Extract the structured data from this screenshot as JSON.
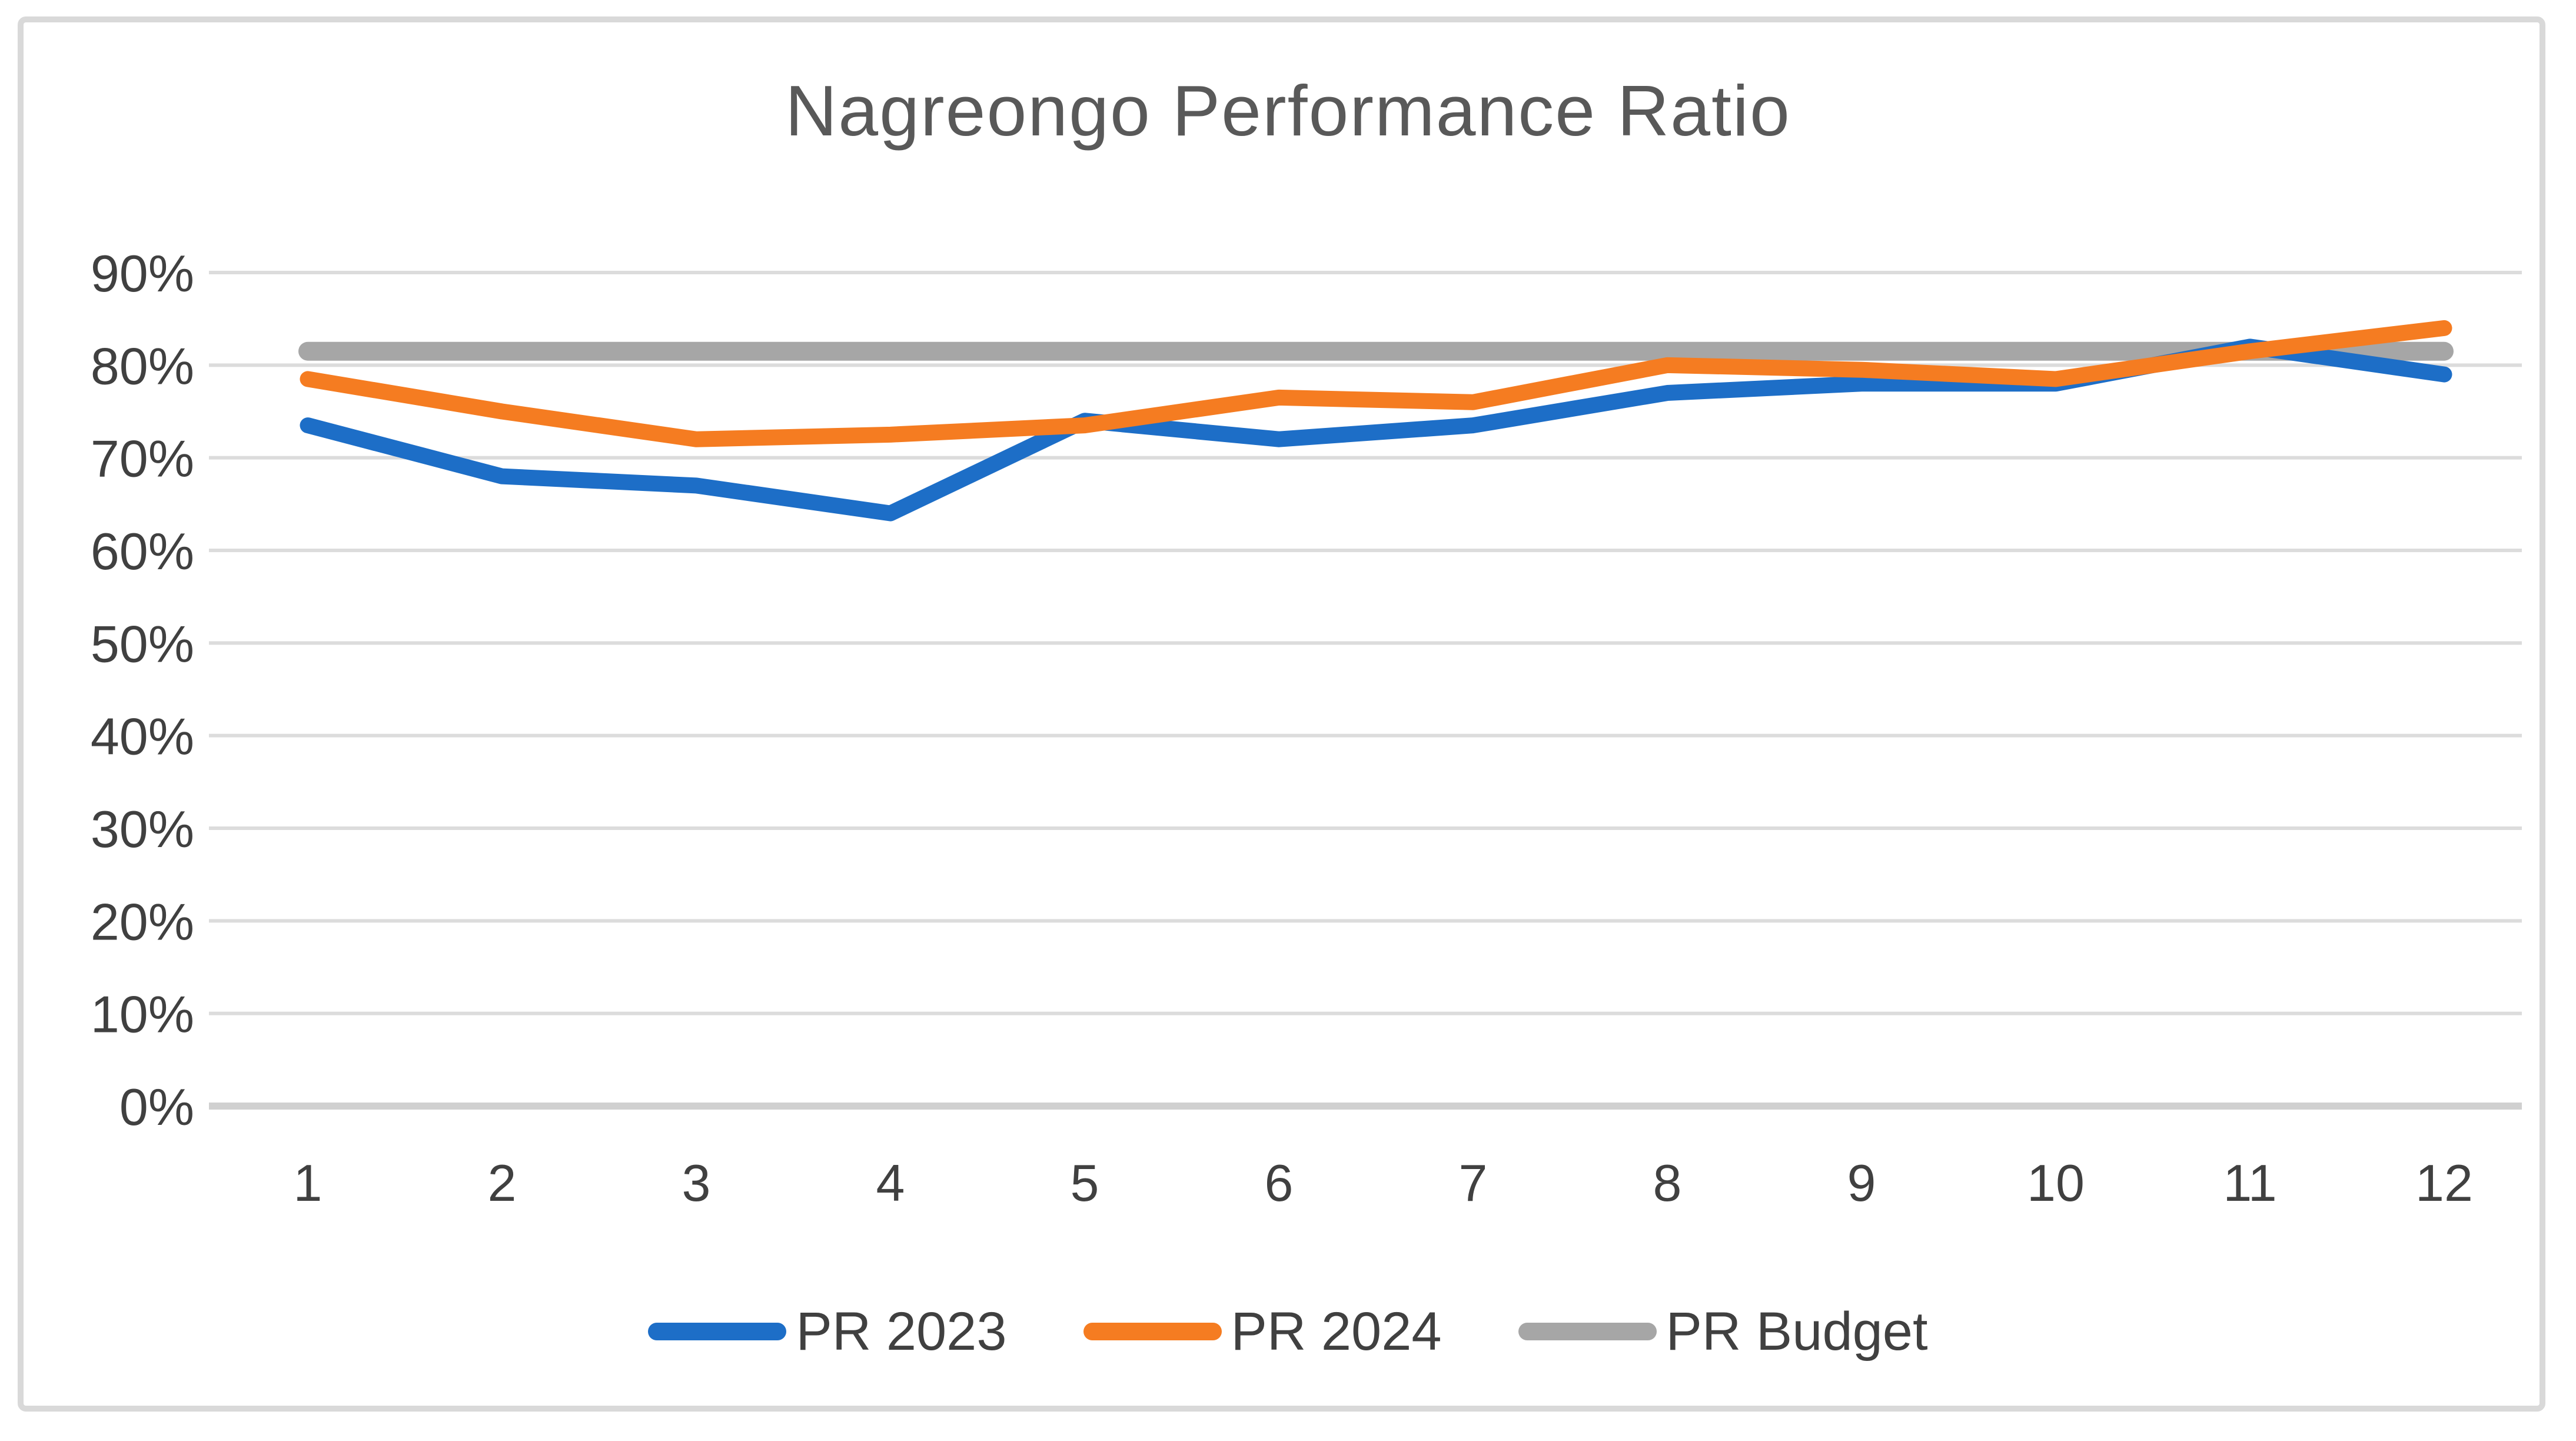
{
  "chart_data": {
    "type": "line",
    "title": "Nagreongo Performance Ratio",
    "categories": [
      "1",
      "2",
      "3",
      "4",
      "5",
      "6",
      "7",
      "8",
      "9",
      "10",
      "11",
      "12"
    ],
    "series": [
      {
        "name": "PR 2023",
        "color": "#1d6ec7",
        "draw_order": 1,
        "values": [
          73.5,
          68,
          67,
          64,
          74,
          72,
          73.5,
          77,
          78,
          78,
          82,
          79
        ]
      },
      {
        "name": "PR 2024",
        "color": "#f57c21",
        "draw_order": 2,
        "values": [
          78.5,
          75,
          72,
          72.5,
          73.5,
          76.5,
          76,
          80,
          79.5,
          78.5,
          81.5,
          84
        ]
      },
      {
        "name": "PR Budget",
        "color": "#a6a6a6",
        "draw_order": 0,
        "values": [
          81.5,
          81.5,
          81.5,
          81.5,
          81.5,
          81.5,
          81.5,
          81.5,
          81.5,
          81.5,
          81.5,
          81.5
        ]
      }
    ],
    "y_ticks": [
      {
        "label": "90%",
        "value": 90
      },
      {
        "label": "80%",
        "value": 80
      },
      {
        "label": "70%",
        "value": 70
      },
      {
        "label": "60%",
        "value": 60
      },
      {
        "label": "50%",
        "value": 50
      },
      {
        "label": "40%",
        "value": 40
      },
      {
        "label": "30%",
        "value": 30
      },
      {
        "label": "20%",
        "value": 20
      },
      {
        "label": "10%",
        "value": 10
      },
      {
        "label": "0%",
        "value": 0
      }
    ],
    "xlabel": "",
    "ylabel": "",
    "ylim": [
      0,
      90
    ],
    "grid": true,
    "legend_position": "bottom"
  },
  "frame": {
    "background_color": "#ffffff",
    "border_color": "#d9d9d9",
    "gridline_color": "#dcdcdc",
    "axis_line_color": "#d0d0d0",
    "title_color": "#595959",
    "tick_label_color": "#404040"
  }
}
